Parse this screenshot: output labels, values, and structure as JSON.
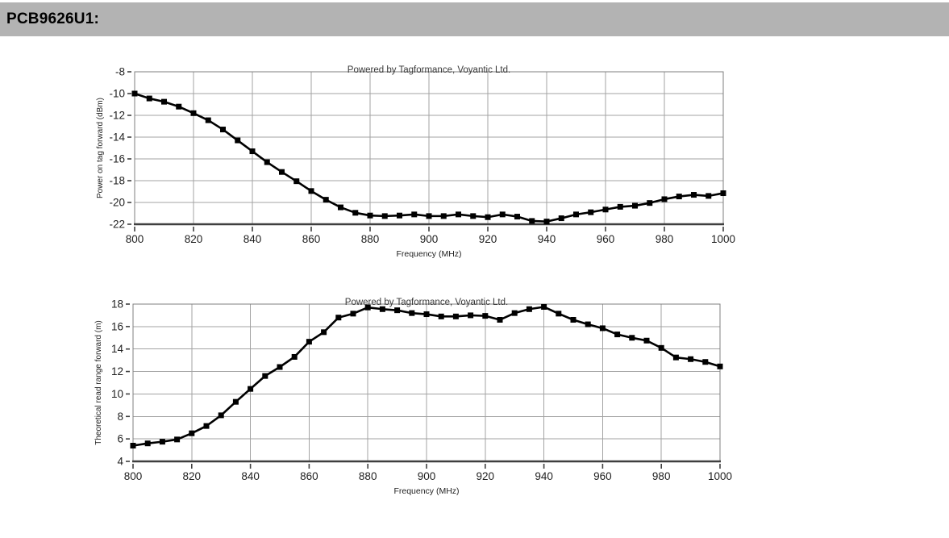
{
  "header": {
    "title": "PCB9626U1:"
  },
  "styles": {
    "header_bar_bg": "#b3b3b3",
    "curve_color": "#000000",
    "grid_color": "#a3a3a3",
    "frame_color": "#7f7f7f",
    "axis_color": "#3f3f3f",
    "tick_label_color": "#1f1f1f",
    "title_color": "#3a3a3a"
  },
  "chart_data": [
    {
      "type": "line",
      "title": "Powered by Tagformance, Voyantic Ltd.",
      "xlabel": "Frequency (MHz)",
      "ylabel": "Power on tag forward (dBm)",
      "xlim": [
        800,
        1000
      ],
      "ylim": [
        -22,
        -8
      ],
      "xticks": [
        800,
        820,
        840,
        860,
        880,
        900,
        920,
        940,
        960,
        980,
        1000
      ],
      "yticks": [
        -22,
        -20,
        -18,
        -16,
        -14,
        -12,
        -10,
        -8
      ],
      "grid": true,
      "legend": "none",
      "marker": "square",
      "color": "#000000",
      "x": [
        800,
        805,
        810,
        815,
        820,
        825,
        830,
        835,
        840,
        845,
        850,
        855,
        860,
        865,
        870,
        875,
        880,
        885,
        890,
        895,
        900,
        905,
        910,
        915,
        920,
        925,
        930,
        935,
        940,
        945,
        950,
        955,
        960,
        965,
        970,
        975,
        980,
        985,
        990,
        995,
        1000
      ],
      "y": [
        -10.0,
        -10.45,
        -10.75,
        -11.2,
        -11.8,
        -12.45,
        -13.3,
        -14.3,
        -15.3,
        -16.3,
        -17.2,
        -18.05,
        -18.95,
        -19.75,
        -20.45,
        -20.95,
        -21.2,
        -21.25,
        -21.2,
        -21.1,
        -21.25,
        -21.25,
        -21.1,
        -21.25,
        -21.35,
        -21.1,
        -21.3,
        -21.7,
        -21.75,
        -21.45,
        -21.1,
        -20.9,
        -20.65,
        -20.4,
        -20.3,
        -20.05,
        -19.7,
        -19.45,
        -19.3,
        -19.4,
        -19.15
      ]
    },
    {
      "type": "line",
      "title": "Powered by Tagformance, Voyantic Ltd.",
      "xlabel": "Frequency (MHz)",
      "ylabel": "Theoretical read range forward (m)",
      "xlim": [
        800,
        1000
      ],
      "ylim": [
        4,
        18
      ],
      "xticks": [
        800,
        820,
        840,
        860,
        880,
        900,
        920,
        940,
        960,
        980,
        1000
      ],
      "yticks": [
        4,
        6,
        8,
        10,
        12,
        14,
        16,
        18
      ],
      "grid": true,
      "legend": "none",
      "marker": "square",
      "color": "#000000",
      "x": [
        800,
        805,
        810,
        815,
        820,
        825,
        830,
        835,
        840,
        845,
        850,
        855,
        860,
        865,
        870,
        875,
        880,
        885,
        890,
        895,
        900,
        905,
        910,
        915,
        920,
        925,
        930,
        935,
        940,
        945,
        950,
        955,
        960,
        965,
        970,
        975,
        980,
        985,
        990,
        995,
        1000
      ],
      "y": [
        5.4,
        5.6,
        5.75,
        5.95,
        6.5,
        7.15,
        8.1,
        9.3,
        10.45,
        11.6,
        12.4,
        13.3,
        14.65,
        15.5,
        16.8,
        17.15,
        17.7,
        17.55,
        17.45,
        17.2,
        17.1,
        16.9,
        16.9,
        17.0,
        16.95,
        16.6,
        17.2,
        17.55,
        17.75,
        17.15,
        16.6,
        16.2,
        15.85,
        15.3,
        15.0,
        14.75,
        14.1,
        13.25,
        13.1,
        12.85,
        12.45
      ]
    }
  ]
}
